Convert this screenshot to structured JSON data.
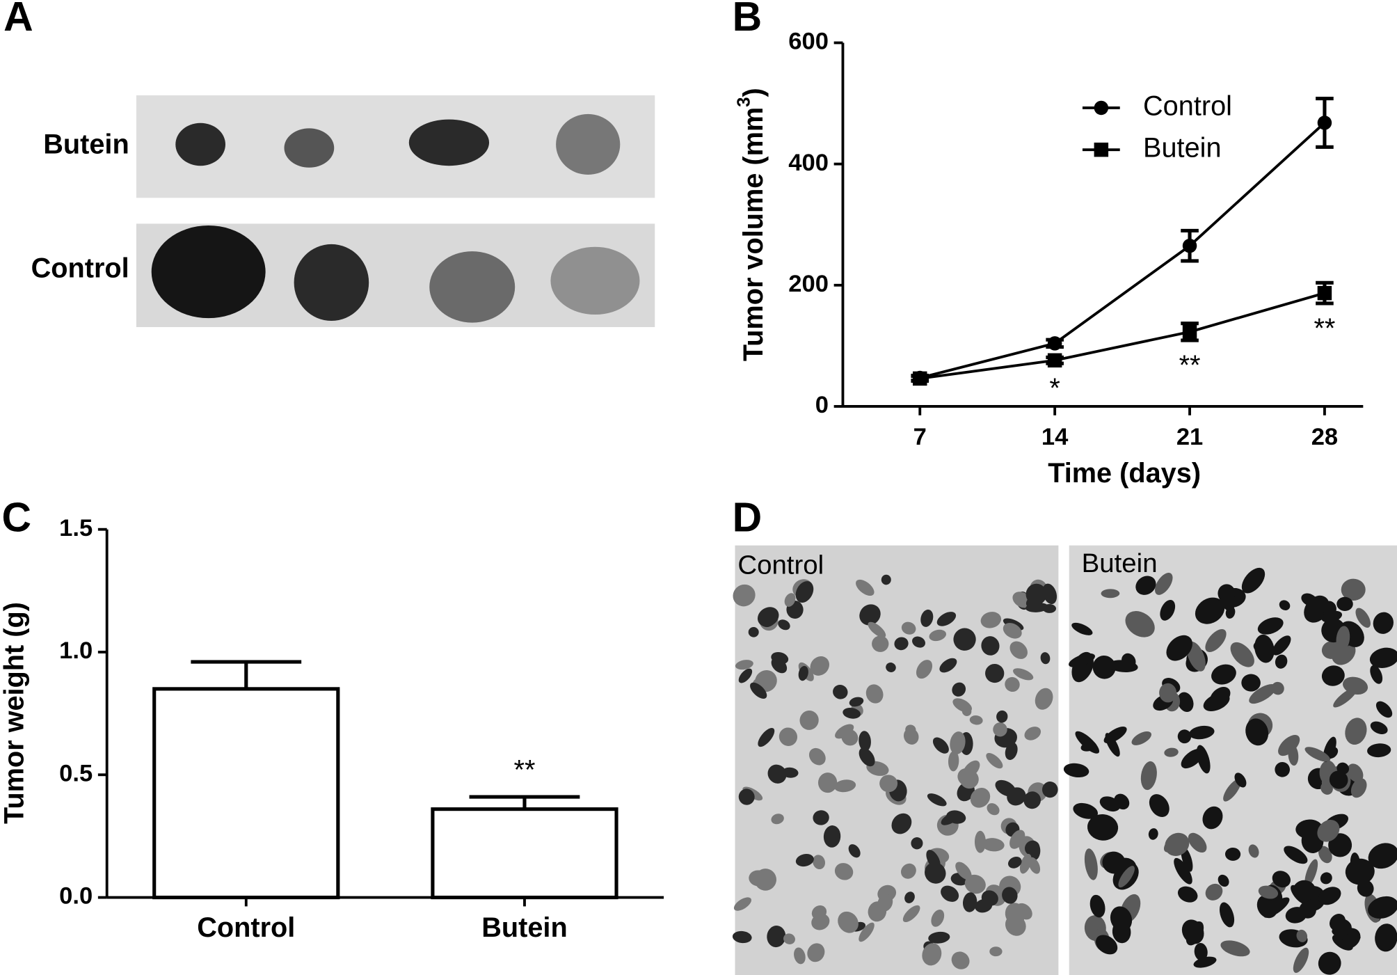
{
  "panel_a": {
    "panel_label": "A",
    "rows": [
      "Butein",
      "Control"
    ]
  },
  "panel_d": {
    "panel_label": "D",
    "labels": [
      "Control",
      "Butein"
    ]
  },
  "chart_data": [
    {
      "type": "line",
      "panel_label": "B",
      "xlabel": "Time (days)",
      "ylabel": [
        "Tumor volume (mm",
        "3",
        ")"
      ],
      "x": [
        7,
        14,
        21,
        28
      ],
      "xlim": [
        3,
        30
      ],
      "xticks": [
        7,
        14,
        21,
        28
      ],
      "ylim": [
        0,
        600
      ],
      "yticks": [
        0,
        200,
        400,
        600
      ],
      "legend": "upper right",
      "series": [
        {
          "name": "Control",
          "color": "#000000",
          "marker": "circle",
          "values": [
            47,
            104,
            265,
            468
          ],
          "errors": [
            4,
            6,
            25,
            40
          ]
        },
        {
          "name": "Butein",
          "color": "#000000",
          "marker": "square",
          "values": [
            46,
            76,
            123,
            187
          ],
          "errors": [
            4,
            5,
            14,
            17
          ]
        }
      ],
      "significance": [
        null,
        "*",
        "**",
        "**"
      ]
    },
    {
      "type": "bar",
      "panel_label": "C",
      "ylabel": "Tumor weight (g)",
      "categories": [
        "Control",
        "Butein"
      ],
      "values": [
        0.85,
        0.36
      ],
      "errors": [
        0.11,
        0.05
      ],
      "color": "#ffffff",
      "edgecolor": "#000000",
      "ylim": [
        0,
        1.5
      ],
      "yticks": [
        {
          "value": 0,
          "label": "0.0"
        },
        0.5,
        {
          "value": 1,
          "label": "1.0"
        },
        1.5
      ],
      "significance": [
        null,
        "**"
      ]
    }
  ]
}
